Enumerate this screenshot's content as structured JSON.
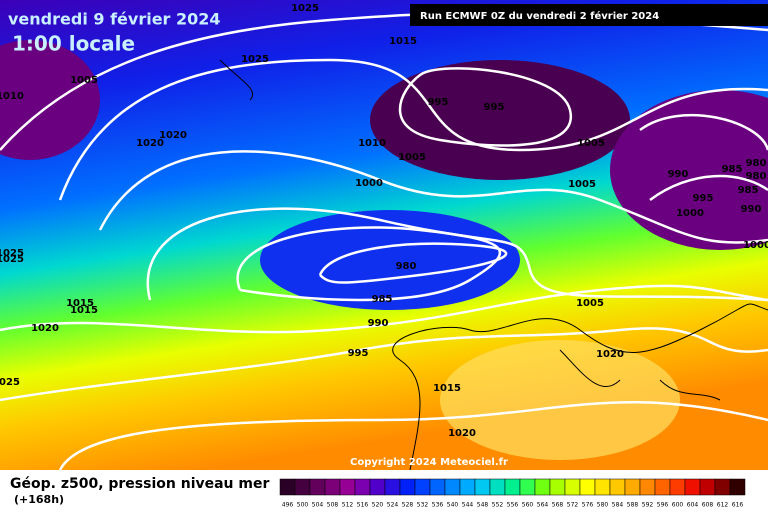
{
  "header": {
    "title": "vendredi 9 février 2024",
    "subtitle": "1:00 locale",
    "run": "Run ECMWF 0Z du vendredi 2 février 2024"
  },
  "copyright": "Copyright 2024 Meteociel.fr",
  "footer": {
    "label": "Géop. z500, pression niveau mer",
    "lead": "(+168h)"
  },
  "scale": {
    "values": [
      496,
      500,
      504,
      508,
      512,
      516,
      520,
      524,
      528,
      532,
      536,
      540,
      544,
      548,
      552,
      556,
      560,
      564,
      568,
      572,
      576,
      580,
      584,
      588,
      592,
      596,
      600,
      604,
      608,
      612,
      616
    ],
    "colors": [
      "#2a0026",
      "#45003f",
      "#62005c",
      "#7c0078",
      "#960094",
      "#7a00b0",
      "#5000c8",
      "#2a10e0",
      "#0020f8",
      "#0040ff",
      "#0064ff",
      "#0088ff",
      "#00aaff",
      "#00c8f0",
      "#00e0c0",
      "#00f090",
      "#30ff50",
      "#70ff10",
      "#a8ff00",
      "#d8ff00",
      "#ffff00",
      "#ffe400",
      "#ffc800",
      "#ffaa00",
      "#ff8800",
      "#ff6400",
      "#ff3c00",
      "#f01000",
      "#c00000",
      "#800000",
      "#300000"
    ]
  },
  "isobars": [
    "1025",
    "1015",
    "1025",
    "1005",
    "1010",
    "995",
    "995",
    "1020",
    "1020",
    "1010",
    "1005",
    "1005",
    "1000",
    "1005",
    "990",
    "985",
    "980",
    "980",
    "985",
    "995",
    "990",
    "1000",
    "1000",
    "980",
    "1025",
    "1025",
    "985",
    "1015",
    "1015",
    "1005",
    "1020",
    "990",
    "995",
    "1020",
    "1025",
    "1015",
    "1020"
  ]
}
